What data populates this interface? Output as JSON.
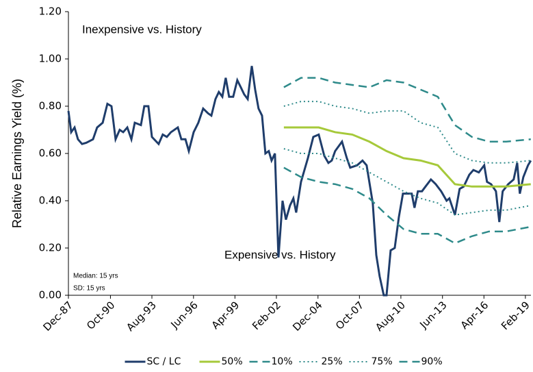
{
  "chart_data": {
    "type": "line",
    "y_label": "Relative Earnings Yield (%)",
    "annotations": [
      "Inexpensive vs. History",
      "Expensive vs. History",
      "Median: 15 yrs",
      "SD: 15 yrs"
    ],
    "xlim": [
      1987.92,
      2019.5
    ],
    "xticks": [
      {
        "value": 1987.92,
        "label": "Dec-87"
      },
      {
        "value": 1990.79,
        "label": "Oct-90"
      },
      {
        "value": 1993.62,
        "label": "Aug-93"
      },
      {
        "value": 1996.46,
        "label": "Jun-96"
      },
      {
        "value": 1999.29,
        "label": "Apr-99"
      },
      {
        "value": 2002.12,
        "label": "Feb-02"
      },
      {
        "value": 2004.96,
        "label": "Dec-04"
      },
      {
        "value": 2007.79,
        "label": "Oct-07"
      },
      {
        "value": 2010.62,
        "label": "Aug-10"
      },
      {
        "value": 2013.46,
        "label": "Jun-13"
      },
      {
        "value": 2016.29,
        "label": "Apr-16"
      },
      {
        "value": 2019.12,
        "label": "Feb-19"
      }
    ],
    "ylim": [
      0,
      1.2
    ],
    "yticks": [
      {
        "value": 0,
        "label": "0.00"
      },
      {
        "value": 0.2,
        "label": "0.20"
      },
      {
        "value": 0.4,
        "label": "0.40"
      },
      {
        "value": 0.6,
        "label": "0.60"
      },
      {
        "value": 0.8,
        "label": "0.80"
      },
      {
        "value": 1,
        "label": "1.00"
      },
      {
        "value": 1.2,
        "label": "1.20"
      }
    ],
    "legend": "bottom",
    "series": [
      {
        "name": "SC / LC",
        "color": "#1f3d6b",
        "dash": "solid",
        "width": 3,
        "x": [
          1987.92,
          1988.11,
          1988.34,
          1988.57,
          1988.85,
          1989.13,
          1989.6,
          1989.88,
          1990.26,
          1990.58,
          1990.86,
          1991.14,
          1991.42,
          1991.66,
          1991.94,
          1992.22,
          1992.45,
          1992.87,
          1993.1,
          1993.38,
          1993.62,
          1994.08,
          1994.36,
          1994.64,
          1994.92,
          1995.39,
          1995.63,
          1995.91,
          1996.14,
          1996.47,
          1996.79,
          1997.12,
          1997.45,
          1997.68,
          1997.96,
          1998.19,
          1998.43,
          1998.66,
          1998.89,
          1999.17,
          1999.45,
          1999.69,
          1999.92,
          2000.16,
          2000.44,
          2000.67,
          2000.9,
          2001.14,
          2001.37,
          2001.6,
          2001.79,
          2002.02,
          2002.26,
          2002.54,
          2002.77,
          2003.05,
          2003.28,
          2003.47,
          2003.8,
          2004.27,
          2004.64,
          2005.01,
          2005.39,
          2005.67,
          2005.9,
          2006.13,
          2006.6,
          2006.93,
          2007.16,
          2007.63,
          2008.0,
          2008.28,
          2008.7,
          2008.94,
          2009.17,
          2009.45,
          2009.64,
          2009.92,
          2010.2,
          2010.48,
          2010.76,
          2011.13,
          2011.36,
          2011.55,
          2011.78,
          2012.06,
          2012.3,
          2012.67,
          2013.0,
          2013.37,
          2013.74,
          2013.93,
          2014.31,
          2014.63,
          2014.91,
          2015.29,
          2015.57,
          2015.94,
          2016.31,
          2016.5,
          2016.78,
          2017.11,
          2017.34,
          2017.57,
          2017.95,
          2018.32,
          2018.56,
          2018.74,
          2018.98,
          2019.3,
          2019.49
        ],
        "values": [
          0.78,
          0.69,
          0.71,
          0.66,
          0.64,
          0.645,
          0.66,
          0.71,
          0.73,
          0.81,
          0.8,
          0.66,
          0.7,
          0.69,
          0.71,
          0.66,
          0.73,
          0.72,
          0.8,
          0.8,
          0.67,
          0.64,
          0.68,
          0.67,
          0.69,
          0.71,
          0.66,
          0.66,
          0.61,
          0.69,
          0.73,
          0.79,
          0.77,
          0.76,
          0.83,
          0.86,
          0.84,
          0.92,
          0.84,
          0.84,
          0.91,
          0.88,
          0.85,
          0.83,
          0.97,
          0.87,
          0.79,
          0.76,
          0.6,
          0.61,
          0.57,
          0.6,
          0.16,
          0.4,
          0.32,
          0.38,
          0.41,
          0.35,
          0.48,
          0.58,
          0.67,
          0.68,
          0.59,
          0.56,
          0.57,
          0.61,
          0.65,
          0.58,
          0.54,
          0.55,
          0.57,
          0.55,
          0.39,
          0.17,
          0.08,
          0.0,
          0.0,
          0.19,
          0.2,
          0.33,
          0.43,
          0.43,
          0.43,
          0.37,
          0.44,
          0.44,
          0.46,
          0.49,
          0.47,
          0.44,
          0.4,
          0.41,
          0.34,
          0.45,
          0.46,
          0.51,
          0.53,
          0.52,
          0.55,
          0.48,
          0.47,
          0.44,
          0.31,
          0.44,
          0.47,
          0.49,
          0.56,
          0.43,
          0.5,
          0.55,
          0.57
        ]
      },
      {
        "name": "50%",
        "color": "#a6c93a",
        "dash": "solid",
        "width": 3,
        "x": [
          2002.63,
          2003.8,
          2005.01,
          2006.13,
          2007.3,
          2008.47,
          2009.64,
          2010.8,
          2011.97,
          2013.14,
          2014.31,
          2015.47,
          2016.64,
          2017.81,
          2019.49
        ],
        "values": [
          0.71,
          0.71,
          0.71,
          0.69,
          0.68,
          0.65,
          0.61,
          0.58,
          0.57,
          0.55,
          0.47,
          0.46,
          0.46,
          0.46,
          0.47
        ]
      },
      {
        "name": "10%",
        "color": "#2e8a8a",
        "dash": "dashed",
        "width": 2.5,
        "x": [
          2002.63,
          2003.8,
          2005.01,
          2006.13,
          2007.3,
          2008.47,
          2009.64,
          2010.8,
          2011.97,
          2013.14,
          2014.31,
          2015.47,
          2016.64,
          2017.81,
          2019.49
        ],
        "values": [
          0.54,
          0.5,
          0.48,
          0.47,
          0.45,
          0.41,
          0.34,
          0.28,
          0.26,
          0.26,
          0.22,
          0.25,
          0.27,
          0.27,
          0.29
        ]
      },
      {
        "name": "25%",
        "color": "#2e8a8a",
        "dash": "dotted",
        "width": 2,
        "x": [
          2002.63,
          2003.8,
          2005.01,
          2006.13,
          2007.3,
          2008.47,
          2009.64,
          2010.8,
          2011.97,
          2013.14,
          2014.31,
          2015.47,
          2016.64,
          2017.81,
          2019.49
        ],
        "values": [
          0.62,
          0.6,
          0.6,
          0.58,
          0.56,
          0.52,
          0.48,
          0.44,
          0.41,
          0.39,
          0.34,
          0.35,
          0.36,
          0.36,
          0.38
        ]
      },
      {
        "name": "75%",
        "color": "#2e8a8a",
        "dash": "dotted",
        "width": 2,
        "x": [
          2002.63,
          2003.8,
          2005.01,
          2006.13,
          2007.3,
          2008.47,
          2009.64,
          2010.8,
          2011.97,
          2013.14,
          2014.31,
          2015.47,
          2016.64,
          2017.81,
          2019.49
        ],
        "values": [
          0.8,
          0.82,
          0.82,
          0.8,
          0.79,
          0.77,
          0.78,
          0.78,
          0.73,
          0.71,
          0.6,
          0.57,
          0.56,
          0.56,
          0.57
        ]
      },
      {
        "name": "90%",
        "color": "#2e8a8a",
        "dash": "dashed",
        "width": 2.5,
        "x": [
          2002.63,
          2003.8,
          2005.01,
          2006.13,
          2007.3,
          2008.47,
          2009.64,
          2010.8,
          2011.97,
          2013.14,
          2014.31,
          2015.47,
          2016.64,
          2017.81,
          2019.49
        ],
        "values": [
          0.88,
          0.92,
          0.92,
          0.9,
          0.89,
          0.88,
          0.91,
          0.9,
          0.87,
          0.84,
          0.72,
          0.67,
          0.65,
          0.65,
          0.66
        ]
      }
    ]
  }
}
